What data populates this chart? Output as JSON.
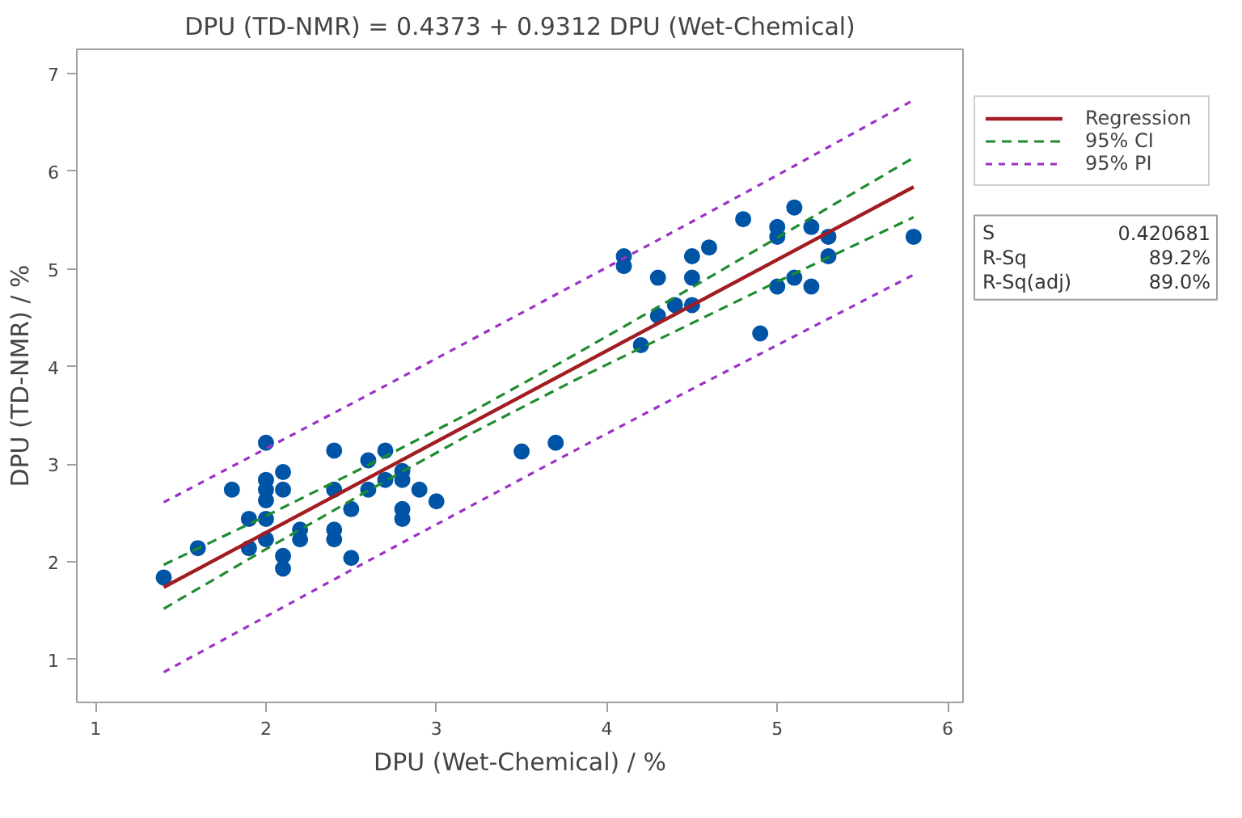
{
  "chart_data": {
    "type": "scatter",
    "title": "DPU (TD-NMR) = 0.4373 + 0.9312 DPU (Wet-Chemical)",
    "xlabel": "DPU (Wet-Chemical) / %",
    "ylabel": "DPU (TD-NMR) / %",
    "xlim": [
      0.89,
      6.09
    ],
    "ylim": [
      0.56,
      7.25
    ],
    "xticks": [
      1,
      2,
      3,
      4,
      5,
      6
    ],
    "yticks": [
      1,
      2,
      3,
      4,
      5,
      6,
      7
    ],
    "grid": false,
    "legend": "top right",
    "series": [
      {
        "marker": "circle",
        "color": "#0054a6",
        "x": [
          1.4,
          1.6,
          1.8,
          1.9,
          1.9,
          2.0,
          2.0,
          2.0,
          2.0,
          2.0,
          2.0,
          2.1,
          2.1,
          2.1,
          2.1,
          2.2,
          2.2,
          2.4,
          2.4,
          2.4,
          2.4,
          2.5,
          2.5,
          2.6,
          2.6,
          2.7,
          2.7,
          2.8,
          2.8,
          2.8,
          2.8,
          2.9,
          3.0,
          3.5,
          3.7,
          4.1,
          4.1,
          4.2,
          4.3,
          4.3,
          4.4,
          4.5,
          4.5,
          4.5,
          4.6,
          4.8,
          4.9,
          5.0,
          5.0,
          5.0,
          5.1,
          5.1,
          5.2,
          5.2,
          5.3,
          5.3,
          5.8
        ],
        "values": [
          1.84,
          2.14,
          2.74,
          2.44,
          2.14,
          3.22,
          2.84,
          2.74,
          2.63,
          2.44,
          2.23,
          2.92,
          2.74,
          2.06,
          1.93,
          2.33,
          2.23,
          3.14,
          2.74,
          2.33,
          2.23,
          2.54,
          2.04,
          3.04,
          2.74,
          3.14,
          2.84,
          2.93,
          2.84,
          2.54,
          2.44,
          2.74,
          2.62,
          3.13,
          3.22,
          5.13,
          5.03,
          4.22,
          4.91,
          4.52,
          4.63,
          5.13,
          4.91,
          4.63,
          5.22,
          5.51,
          4.34,
          5.43,
          5.33,
          4.82,
          5.63,
          4.91,
          5.43,
          4.82,
          5.33,
          5.13,
          5.33
        ]
      },
      {
        "type": "line",
        "name": "Regression",
        "color": "#a21d21",
        "line_style": "solid",
        "x": [
          1.4,
          5.8
        ],
        "values": [
          1.74,
          5.84
        ]
      },
      {
        "type": "line",
        "name": "95% CI",
        "color": "#1e8c2e",
        "line_style": "dashed",
        "x": [
          1.4,
          2.0,
          2.6,
          3.2,
          3.8,
          4.4,
          5.0,
          5.8
        ],
        "values": [
          1.97,
          2.47,
          2.99,
          3.53,
          4.11,
          4.71,
          5.32,
          6.14
        ]
      },
      {
        "type": "line",
        "color": "#1e8c2e",
        "line_style": "dashed",
        "x": [
          1.4,
          2.0,
          2.6,
          3.2,
          3.8,
          4.4,
          5.0,
          5.8
        ],
        "values": [
          1.52,
          2.13,
          2.73,
          3.31,
          3.85,
          4.36,
          4.87,
          5.53
        ]
      },
      {
        "type": "line",
        "name": "95% PI",
        "color": "#9b30c8",
        "line_style": "dotted",
        "x": [
          1.4,
          2.0,
          2.6,
          3.2,
          3.8,
          4.4,
          5.0,
          5.8
        ],
        "values": [
          2.61,
          3.16,
          3.71,
          4.27,
          4.83,
          5.39,
          5.96,
          6.73
        ]
      },
      {
        "type": "line",
        "color": "#9b30c8",
        "line_style": "dotted",
        "x": [
          1.4,
          2.0,
          2.6,
          3.2,
          3.8,
          4.4,
          5.0,
          5.8
        ],
        "values": [
          0.87,
          1.44,
          2.01,
          2.57,
          3.13,
          3.68,
          4.22,
          4.94
        ]
      }
    ],
    "annotations": [
      "S",
      "0.420681",
      "R-Sq",
      "89.2%",
      "R-Sq(adj)",
      "89.0%"
    ]
  }
}
